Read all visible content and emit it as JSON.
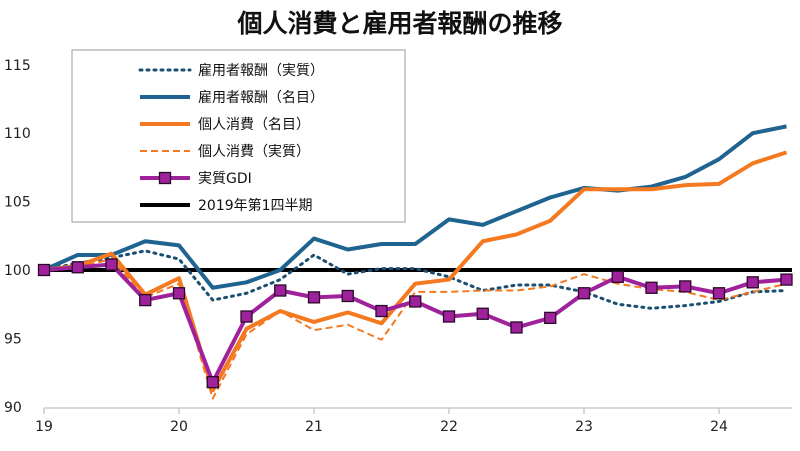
{
  "chart_data": {
    "type": "line",
    "title": "個人消費と雇用者報酬の推移",
    "xlabel": "",
    "ylabel": "",
    "ylim": [
      90,
      115
    ],
    "yticks": [
      "90",
      "95",
      "100",
      "105",
      "110",
      "115"
    ],
    "xticks": [
      "19",
      "20",
      "21",
      "22",
      "23",
      "24"
    ],
    "x": [
      "2019Q1",
      "2019Q2",
      "2019Q3",
      "2019Q4",
      "2020Q1",
      "2020Q2",
      "2020Q3",
      "2020Q4",
      "2021Q1",
      "2021Q2",
      "2021Q3",
      "2021Q4",
      "2022Q1",
      "2022Q2",
      "2022Q3",
      "2022Q4",
      "2023Q1",
      "2023Q2",
      "2023Q3",
      "2023Q4",
      "2024Q1",
      "2024Q2",
      "2024Q3"
    ],
    "grid": false,
    "legend_position": "top-left",
    "series": [
      {
        "name": "雇用者報酬（実質）",
        "color": "#1b4f72",
        "style": "dotted",
        "values": [
          100,
          100.5,
          100.9,
          101.4,
          100.8,
          97.8,
          98.3,
          99.3,
          101.1,
          99.7,
          100.1,
          100.1,
          99.5,
          98.5,
          98.9,
          98.9,
          98.4,
          97.5,
          97.2,
          97.4,
          97.7,
          98.4,
          98.5
        ]
      },
      {
        "name": "雇用者報酬（名目）",
        "color": "#1f6391",
        "style": "solid",
        "values": [
          100,
          101.1,
          101.1,
          102.1,
          101.8,
          98.7,
          99.1,
          100.0,
          102.3,
          101.5,
          101.9,
          101.9,
          103.7,
          103.3,
          104.3,
          105.3,
          106.0,
          105.8,
          106.1,
          106.8,
          108.1,
          110.0,
          110.5
        ]
      },
      {
        "name": "個人消費（名目）",
        "color": "#f47920",
        "style": "solid",
        "values": [
          100,
          100.3,
          101.2,
          98.2,
          99.4,
          91.2,
          95.7,
          97.0,
          96.2,
          96.9,
          96.1,
          99.0,
          99.3,
          102.1,
          102.6,
          103.6,
          105.9,
          105.9,
          105.9,
          106.2,
          106.3,
          107.8,
          108.6
        ]
      },
      {
        "name": "個人消費（実質）",
        "color": "#f47920",
        "style": "dashed",
        "values": [
          100,
          100.2,
          100.8,
          98.0,
          99.0,
          90.6,
          95.3,
          97.0,
          95.6,
          96.0,
          94.9,
          98.4,
          98.4,
          98.5,
          98.5,
          98.8,
          99.7,
          99.0,
          98.6,
          98.4,
          97.8,
          98.4,
          99.0
        ]
      },
      {
        "name": "実質GDI",
        "color": "#a0219c",
        "style": "solid-marker",
        "values": [
          100,
          100.2,
          100.4,
          97.8,
          98.3,
          91.8,
          96.6,
          98.5,
          98.0,
          98.1,
          97.0,
          97.7,
          96.6,
          96.8,
          95.8,
          96.5,
          98.3,
          99.5,
          98.7,
          98.8,
          98.3,
          99.1,
          99.3
        ]
      },
      {
        "name": "2019年第1四半期",
        "color": "#000000",
        "style": "reference",
        "values": [
          100,
          100,
          100,
          100,
          100,
          100,
          100,
          100,
          100,
          100,
          100,
          100,
          100,
          100,
          100,
          100,
          100,
          100,
          100,
          100,
          100,
          100,
          100
        ]
      }
    ]
  }
}
